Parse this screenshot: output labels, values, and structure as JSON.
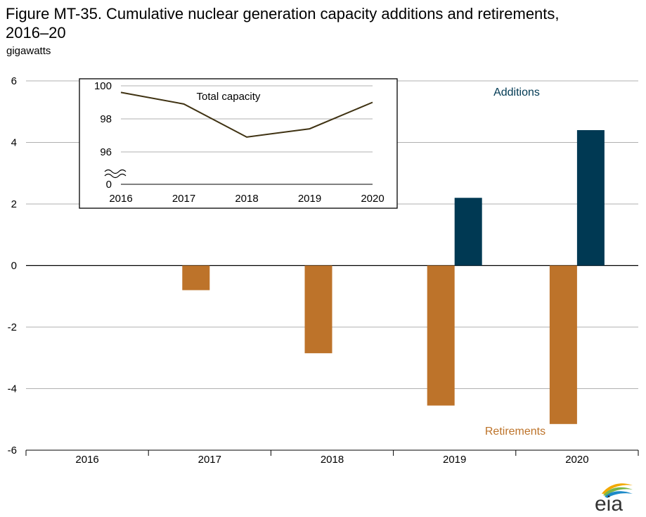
{
  "title": "Figure MT-35. Cumulative nuclear generation capacity additions and retirements, 2016–20",
  "title_line1": "Figure MT-35. Cumulative nuclear generation capacity additions and retirements,",
  "title_line2": "2016–20",
  "unit_label": "gigawatts",
  "logo_text": "eia",
  "colors": {
    "additions": "#003953",
    "retirements": "#bd732a",
    "inset_line": "#3f3212",
    "grid": "#b0b0b0"
  },
  "chart_data": [
    {
      "type": "bar",
      "categories": [
        "2016",
        "2017",
        "2018",
        "2019",
        "2020"
      ],
      "series": [
        {
          "name": "Additions",
          "values": [
            0,
            0,
            0,
            2.2,
            4.4
          ]
        },
        {
          "name": "Retirements",
          "values": [
            0,
            -0.8,
            -2.85,
            -4.55,
            -5.15
          ]
        }
      ],
      "ylabel": "gigawatts",
      "ylim": [
        -6,
        6
      ],
      "yticks": [
        "6",
        "4",
        "2",
        "0",
        "-2",
        "-4",
        "-6"
      ],
      "ytick_values": [
        6,
        4,
        2,
        0,
        -2,
        -4,
        -6
      ],
      "grid": true
    },
    {
      "type": "line",
      "x": [
        "2016",
        "2017",
        "2018",
        "2019",
        "2020"
      ],
      "series": [
        {
          "name": "Total capacity",
          "values": [
            99.6,
            98.9,
            96.9,
            97.4,
            99.0
          ]
        }
      ],
      "ylim": [
        95,
        100
      ],
      "yticks": [
        "100",
        "98",
        "96",
        "0"
      ],
      "ytick_values": [
        100,
        98,
        96
      ],
      "axis_break": true,
      "grid": true
    }
  ]
}
